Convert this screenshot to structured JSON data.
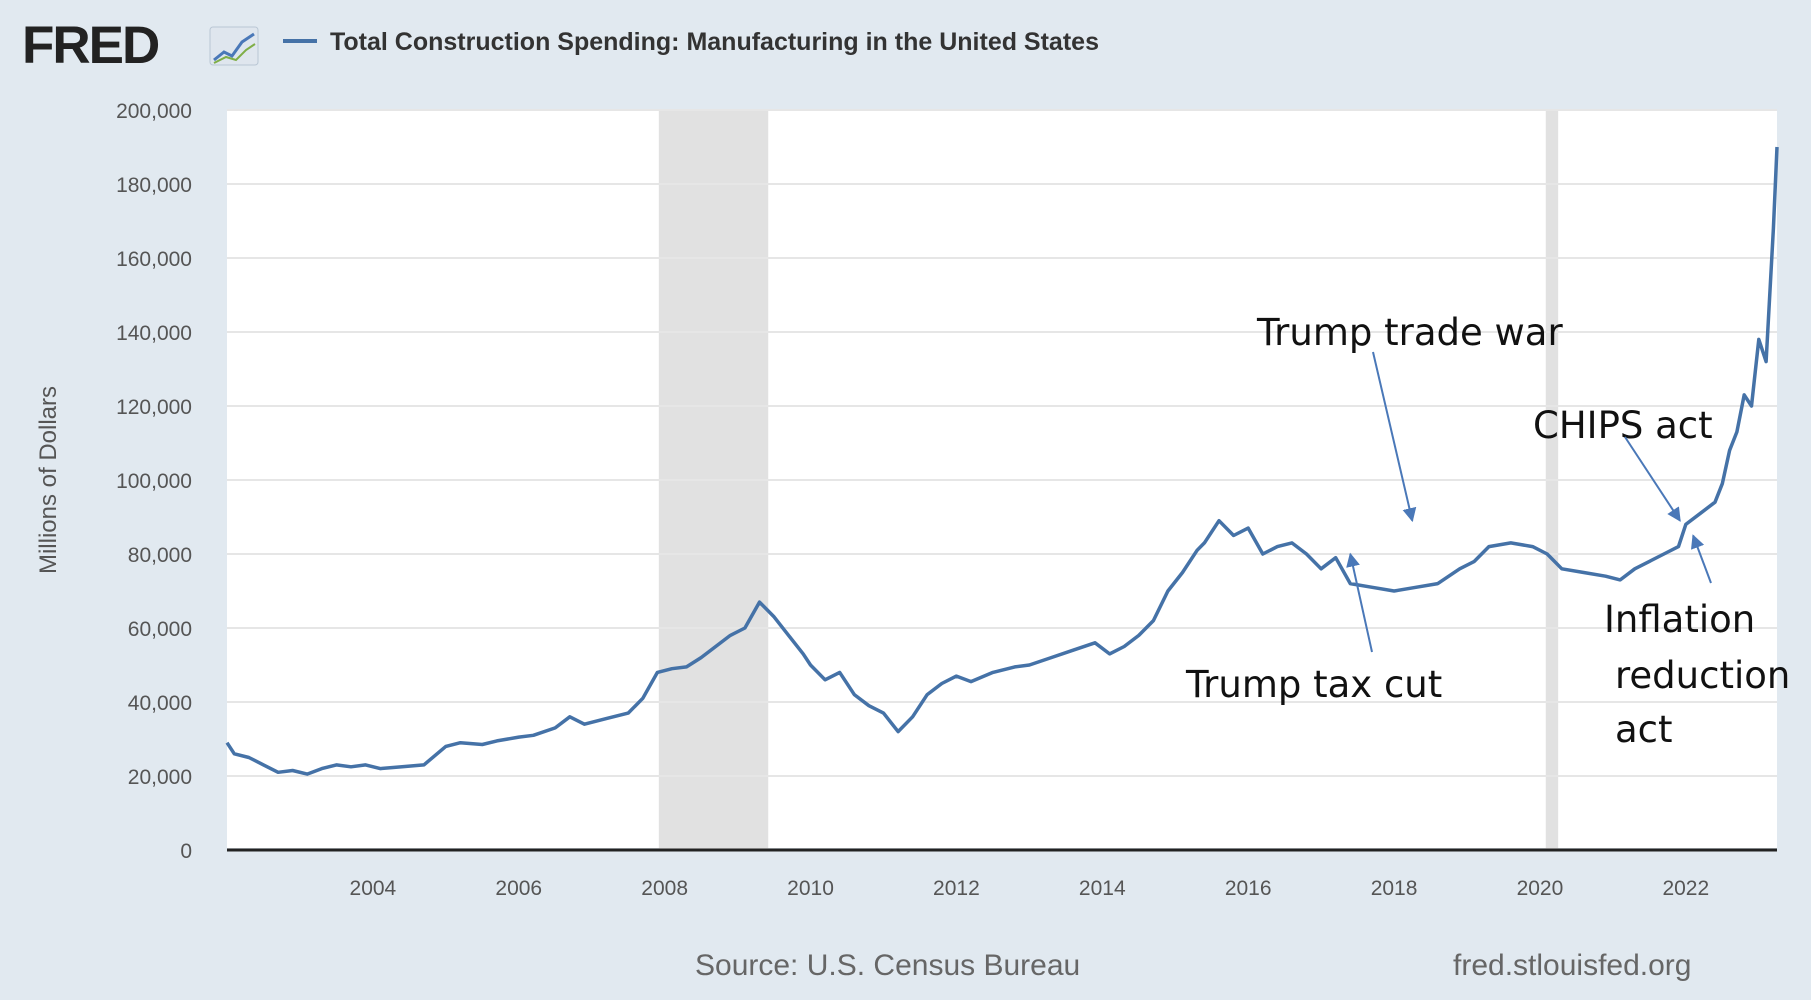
{
  "header": {
    "logo_text": "FRED",
    "legend_label": "Total Construction Spending: Manufacturing in the United States"
  },
  "footer": {
    "source": "Source: U.S. Census Bureau",
    "site": "fred.stlouisfed.org"
  },
  "colors": {
    "series": "#4572a7",
    "recession": "#e1e1e1",
    "page_bg": "#e1e9f0",
    "plot_bg": "#ffffff",
    "annotation_arrow": "#4a78b8"
  },
  "chart_data": {
    "type": "line",
    "title": "Total Construction Spending: Manufacturing in the United States",
    "xlabel": "",
    "ylabel": "Millions of Dollars",
    "xlim": [
      2002.0,
      2023.25
    ],
    "ylim": [
      0,
      200000
    ],
    "grid": true,
    "legend_placement": "top-left",
    "x_ticks": [
      "2004",
      "2006",
      "2008",
      "2010",
      "2012",
      "2014",
      "2016",
      "2018",
      "2020",
      "2022"
    ],
    "y_ticks": [
      "0",
      "20,000",
      "40,000",
      "60,000",
      "80,000",
      "100,000",
      "120,000",
      "140,000",
      "160,000",
      "180,000",
      "200,000"
    ],
    "recessions": [
      [
        2007.92,
        2009.42
      ],
      [
        2020.08,
        2020.25
      ]
    ],
    "series": [
      {
        "name": "Total Construction Spending: Manufacturing in the United States",
        "x": [
          2002.0,
          2002.1,
          2002.3,
          2002.5,
          2002.7,
          2002.9,
          2003.1,
          2003.3,
          2003.5,
          2003.7,
          2003.9,
          2004.1,
          2004.4,
          2004.7,
          2005.0,
          2005.2,
          2005.5,
          2005.7,
          2006.0,
          2006.2,
          2006.5,
          2006.7,
          2006.9,
          2007.2,
          2007.5,
          2007.7,
          2007.9,
          2008.1,
          2008.3,
          2008.5,
          2008.7,
          2008.9,
          2009.1,
          2009.3,
          2009.5,
          2009.7,
          2009.9,
          2010.0,
          2010.2,
          2010.4,
          2010.6,
          2010.8,
          2011.0,
          2011.2,
          2011.4,
          2011.6,
          2011.8,
          2012.0,
          2012.2,
          2012.5,
          2012.8,
          2013.0,
          2013.3,
          2013.6,
          2013.9,
          2014.1,
          2014.3,
          2014.5,
          2014.7,
          2014.9,
          2015.1,
          2015.3,
          2015.4,
          2015.6,
          2015.8,
          2016.0,
          2016.2,
          2016.4,
          2016.6,
          2016.8,
          2017.0,
          2017.2,
          2017.4,
          2017.7,
          2018.0,
          2018.3,
          2018.6,
          2018.9,
          2019.1,
          2019.3,
          2019.6,
          2019.9,
          2020.1,
          2020.3,
          2020.6,
          2020.9,
          2021.1,
          2021.3,
          2021.5,
          2021.7,
          2021.9,
          2022.0,
          2022.2,
          2022.4,
          2022.5,
          2022.6,
          2022.7,
          2022.8,
          2022.9,
          2023.0,
          2023.1,
          2023.2,
          2023.25
        ],
        "values": [
          29000,
          26000,
          25000,
          23000,
          21000,
          21500,
          20500,
          22000,
          23000,
          22500,
          23000,
          22000,
          22500,
          23000,
          28000,
          29000,
          28500,
          29500,
          30500,
          31000,
          33000,
          36000,
          34000,
          35500,
          37000,
          41000,
          48000,
          49000,
          49500,
          52000,
          55000,
          58000,
          60000,
          67000,
          63000,
          58000,
          53000,
          50000,
          46000,
          48000,
          42000,
          39000,
          37000,
          32000,
          36000,
          42000,
          45000,
          47000,
          45500,
          48000,
          49500,
          50000,
          52000,
          54000,
          56000,
          53000,
          55000,
          58000,
          62000,
          70000,
          75000,
          81000,
          83000,
          89000,
          85000,
          87000,
          80000,
          82000,
          83000,
          80000,
          76000,
          79000,
          72000,
          71000,
          70000,
          71000,
          72000,
          76000,
          78000,
          82000,
          83000,
          82000,
          80000,
          76000,
          75000,
          74000,
          73000,
          76000,
          78000,
          80000,
          82000,
          88000,
          91000,
          94000,
          99000,
          108000,
          113000,
          123000,
          120000,
          138000,
          132000,
          168000,
          190000
        ]
      }
    ],
    "annotations": [
      {
        "text": "Trump trade war",
        "target_x": 2018.25,
        "target_y": 89000
      },
      {
        "text": "Trump tax cut",
        "target_x": 2017.4,
        "target_y": 80000
      },
      {
        "text": "CHIPS act",
        "target_x": 2021.92,
        "target_y": 89000
      },
      {
        "text": "Inflation",
        "target_x": 2022.1,
        "target_y": 85000
      },
      {
        "text": "reduction"
      },
      {
        "text": "act"
      }
    ]
  }
}
